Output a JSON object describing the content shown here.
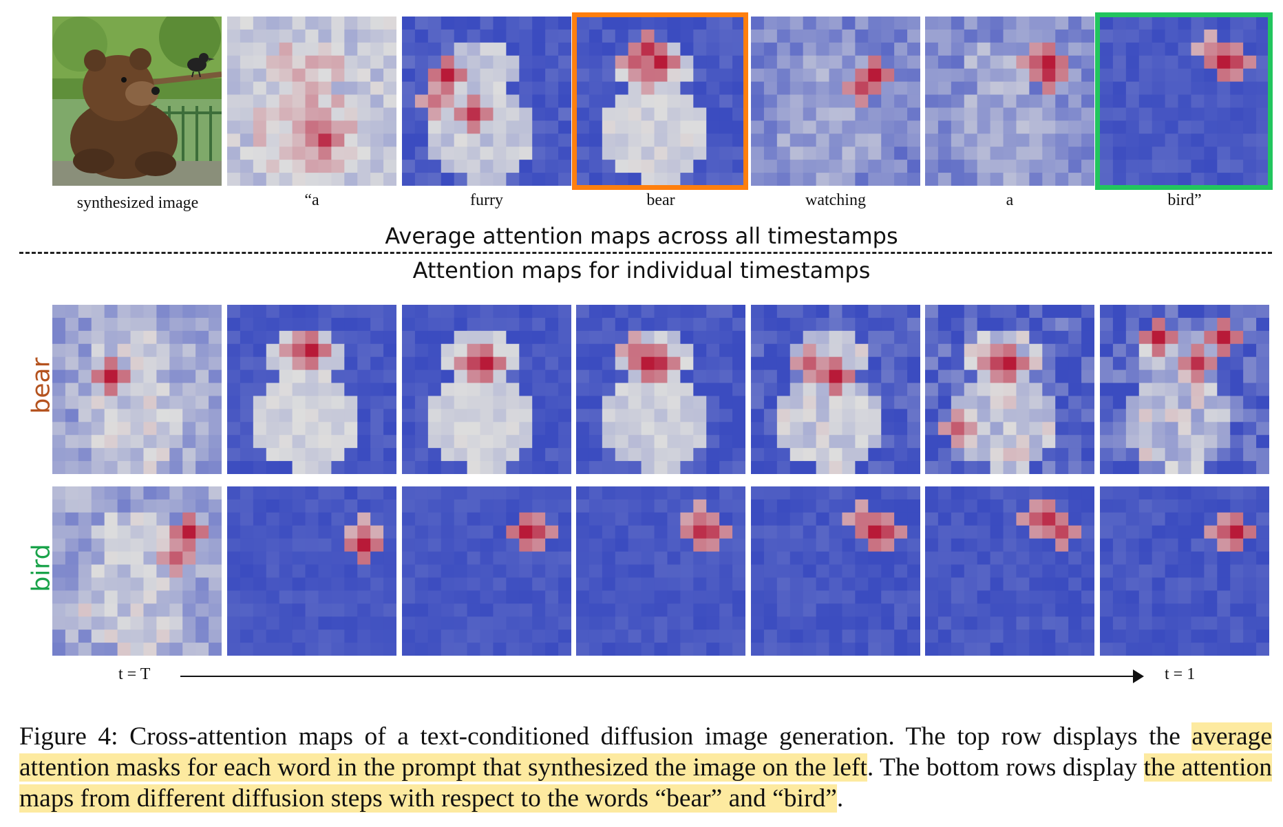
{
  "top_row": {
    "photo_label": "synthesized image",
    "words": [
      "“a",
      "furry",
      "bear",
      "watching",
      "a",
      "bird”"
    ],
    "highlighted_words": {
      "orange": "bear",
      "green": "bird”"
    },
    "colors": {
      "orange": "#ff7f0e",
      "green": "#22c55e"
    }
  },
  "headings": {
    "average": "Average attention maps across all timestamps",
    "individual": "Attention maps for individual  timestamps"
  },
  "row_labels": {
    "bear": "bear",
    "bird": "bird",
    "bear_color": "#b4531f",
    "bird_color": "#1aa34a"
  },
  "time_axis": {
    "start": "t = T",
    "end": "t = 1"
  },
  "caption": {
    "prefix": "Figure 4: Cross-attention maps of a text-conditioned diffusion image generation. The top row displays the ",
    "highlight1": "average attention masks for each word in the prompt that synthesized the image on the left",
    "middle": ". The bottom rows display ",
    "highlight2": "the attention maps from different diffusion steps with respect to the words “bear” and “bird”",
    "suffix": ".",
    "highlight_color": "#fdeaa0"
  },
  "colormap": {
    "low": "#3b4cc0",
    "mid": "#dddddd",
    "high": "#b40426"
  }
}
